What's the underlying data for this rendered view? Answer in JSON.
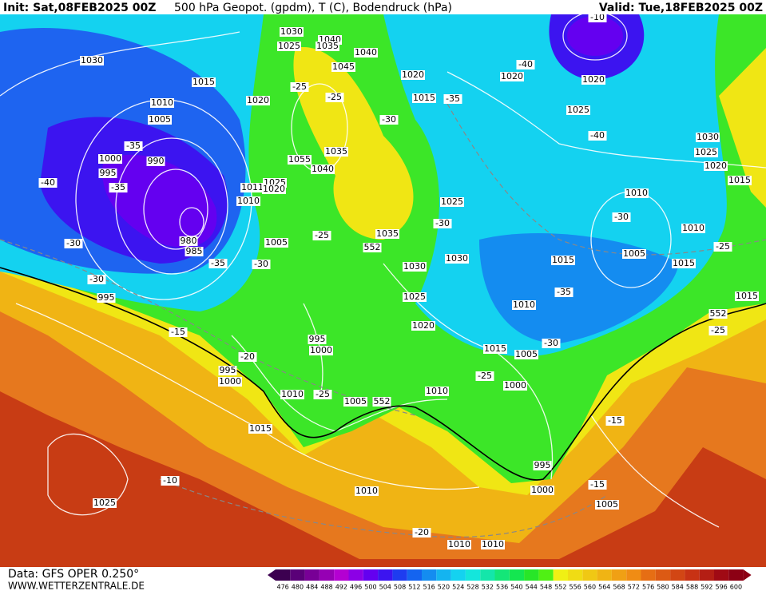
{
  "header": {
    "init": "Init: Sat,08FEB2025 00Z",
    "title": "500 hPa Geopot. (gpdm), T (C), Bodendruck (hPa)",
    "valid": "Valid: Tue,18FEB2025 00Z"
  },
  "footer": {
    "source": "Data: GFS OPER 0.250°",
    "site": "WWW.WETTERZENTRALE.DE"
  },
  "scale": {
    "labels": [
      476,
      480,
      484,
      488,
      492,
      496,
      500,
      504,
      508,
      512,
      516,
      520,
      524,
      528,
      532,
      536,
      540,
      544,
      548,
      552,
      556,
      560,
      564,
      568,
      572,
      576,
      580,
      584,
      588,
      592,
      596,
      600
    ],
    "colors": [
      "#3c0050",
      "#5a0078",
      "#780096",
      "#9600b4",
      "#b400d2",
      "#8c00e6",
      "#6400f0",
      "#3c14f0",
      "#1e3cf0",
      "#1464f0",
      "#148cf0",
      "#14b4f0",
      "#14d2f0",
      "#14e6dc",
      "#14e6aa",
      "#14e678",
      "#14e650",
      "#28e628",
      "#50f014",
      "#f0f014",
      "#f0dc14",
      "#f0c814",
      "#f0b414",
      "#f0a014",
      "#f08c14",
      "#e66e14",
      "#dc5a14",
      "#d24614",
      "#c83214",
      "#b41e14",
      "#a00a14",
      "#8c0014"
    ]
  },
  "contour_labels": [
    "1030",
    "1015",
    "1010",
    "1005",
    "1000",
    "995",
    "990",
    "980",
    "985",
    "-40",
    "-35",
    "-35",
    "-30",
    "-35",
    "-30",
    "-30",
    "995",
    "-15",
    "-20",
    "995",
    "1000",
    "1015",
    "-10",
    "1025",
    "1030",
    "1025",
    "1040",
    "1035",
    "1040",
    "1045",
    "-25",
    "-25",
    "1020",
    "-30",
    "1035",
    "1055",
    "1040",
    "1025",
    "1011",
    "1020",
    "1010",
    "1005",
    "-25",
    "552",
    "1035",
    "1030",
    "1025",
    "1020",
    "995",
    "1000",
    "1010",
    "-25",
    "1005",
    "552",
    "1010",
    "1020",
    "1015",
    "-35",
    "1025",
    "-30",
    "1030",
    "1020",
    "-40",
    "1025",
    "1020",
    "-40",
    "1030",
    "1025",
    "1020",
    "1015",
    "1010",
    "-30",
    "1010",
    "1005",
    "1015",
    "1015",
    "-25",
    "-35",
    "1010",
    "1015",
    "1005",
    "-30",
    "-25",
    "1000",
    "1015",
    "552",
    "-25",
    "-15",
    "-15",
    "995",
    "1000",
    "1005",
    "1010",
    "-20",
    "1010",
    "1010",
    "-10"
  ]
}
